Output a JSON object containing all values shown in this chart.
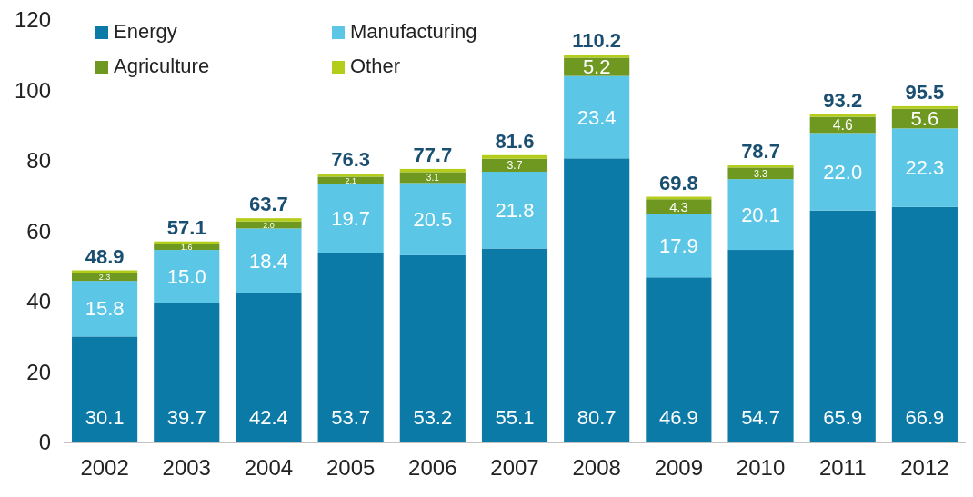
{
  "chart_data": {
    "type": "bar",
    "stacked": true,
    "categories": [
      "2002",
      "2003",
      "2004",
      "2005",
      "2006",
      "2007",
      "2008",
      "2009",
      "2010",
      "2011",
      "2012"
    ],
    "series": [
      {
        "name": "Energy",
        "color": "#0b7aa6",
        "values": [
          30.1,
          39.7,
          42.4,
          53.7,
          53.2,
          55.1,
          80.7,
          46.9,
          54.7,
          65.9,
          66.9
        ],
        "value_labels": [
          "30.1",
          "39.7",
          "42.4",
          "53.7",
          "53.2",
          "55.1",
          "80.7",
          "46.9",
          "54.7",
          "65.9",
          "66.9"
        ]
      },
      {
        "name": "Manufacturing",
        "color": "#5cc6e6",
        "values": [
          15.8,
          15.0,
          18.4,
          19.7,
          20.5,
          21.8,
          23.4,
          17.9,
          20.1,
          22.0,
          22.3
        ],
        "value_labels": [
          "15.8",
          "15.0",
          "18.4",
          "19.7",
          "20.5",
          "21.8",
          "23.4",
          "17.9",
          "20.1",
          "22.0",
          "22.3"
        ]
      },
      {
        "name": "Agriculture",
        "color": "#6e9820",
        "values": [
          2.3,
          1.6,
          2.0,
          2.1,
          3.1,
          3.7,
          5.2,
          4.3,
          3.3,
          4.6,
          5.6
        ],
        "value_labels": [
          "2.3",
          "1.6",
          "2.0",
          "2.1",
          "3.1",
          "3.7",
          "5.2",
          "4.3",
          "3.3",
          "4.6",
          "5.6"
        ]
      },
      {
        "name": "Other",
        "color": "#b4cc1a",
        "values": [
          0.7,
          0.8,
          0.9,
          0.8,
          0.9,
          1.0,
          0.9,
          0.7,
          0.6,
          0.7,
          0.7
        ],
        "value_labels": [
          null,
          null,
          null,
          null,
          null,
          null,
          null,
          null,
          null,
          null,
          null
        ]
      }
    ],
    "totals": [
      "48.9",
      "57.1",
      "63.7",
      "76.3",
      "77.7",
      "81.6",
      "110.2",
      "69.8",
      "78.7",
      "93.2",
      "95.5"
    ],
    "ylim": [
      0,
      120
    ],
    "yticks": [
      0,
      20,
      40,
      60,
      80,
      100,
      120
    ],
    "grid": false,
    "legend": "top left"
  }
}
